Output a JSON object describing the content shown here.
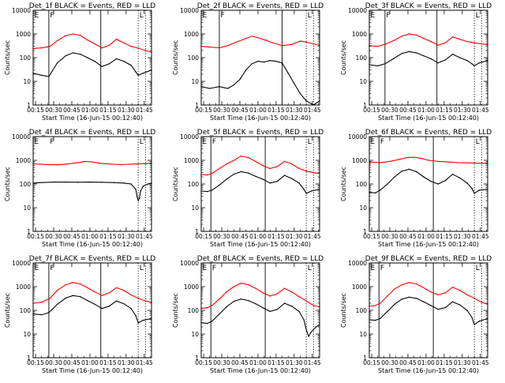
{
  "figure": {
    "xlabel": "Start Time (16-Jun-15 00:12:40)",
    "ylabel": "Counts/sec",
    "x_tick_labels": [
      "00:15",
      "00:30",
      "00:45",
      "01:00",
      "01:15",
      "01:30",
      "01:45"
    ],
    "y_tick_labels": [
      "1",
      "10",
      "100",
      "1000",
      "10000"
    ],
    "marker_labels": {
      "E": "E",
      "F": "F",
      "L": "L"
    }
  },
  "chart_data": [
    {
      "type": "line",
      "title": "Det_1f BLACK = Events, RED = LLD",
      "xlim": [
        13,
        111
      ],
      "ylim": [
        1,
        10000
      ],
      "y_scale": "log",
      "vlines": [
        {
          "x": 26,
          "style": "solid"
        },
        {
          "x": 69,
          "style": "solid"
        },
        {
          "x": 100,
          "style": "dotted"
        },
        {
          "x": 106,
          "style": "dotted"
        }
      ],
      "markers": [
        {
          "label": "E",
          "x": 14
        },
        {
          "label": "F",
          "x": 27
        },
        {
          "label": "L",
          "x": 101
        }
      ],
      "series": [
        {
          "color": "#ff0000",
          "x": [
            13,
            20,
            27,
            33,
            40,
            46,
            52,
            58,
            64,
            70,
            76,
            82,
            88,
            94,
            100,
            106,
            111
          ],
          "y": [
            240,
            260,
            300,
            520,
            850,
            1000,
            870,
            560,
            380,
            260,
            330,
            600,
            420,
            300,
            250,
            200,
            170
          ]
        },
        {
          "color": "#000000",
          "x": [
            13,
            20,
            26,
            33,
            40,
            46,
            52,
            58,
            64,
            70,
            76,
            82,
            88,
            94,
            98,
            100,
            104,
            111
          ],
          "y": [
            22,
            18,
            16,
            60,
            120,
            160,
            140,
            100,
            70,
            42,
            55,
            90,
            70,
            48,
            25,
            18,
            22,
            30
          ]
        }
      ]
    },
    {
      "type": "line",
      "title": "Det_2f BLACK = Events, RED = LLD",
      "xlim": [
        13,
        111
      ],
      "ylim": [
        1,
        10000
      ],
      "y_scale": "log",
      "vlines": [
        {
          "x": 28,
          "style": "solid"
        },
        {
          "x": 80,
          "style": "solid"
        },
        {
          "x": 100,
          "style": "dotted"
        },
        {
          "x": 106,
          "style": "dotted"
        }
      ],
      "markers": [
        {
          "label": "E",
          "x": 14
        },
        {
          "label": "F",
          "x": 29
        },
        {
          "label": "L",
          "x": 101
        }
      ],
      "series": [
        {
          "color": "#ff0000",
          "x": [
            13,
            20,
            28,
            35,
            42,
            50,
            55,
            60,
            66,
            72,
            80,
            88,
            95,
            100,
            106,
            111
          ],
          "y": [
            300,
            280,
            260,
            320,
            450,
            650,
            800,
            700,
            550,
            430,
            320,
            360,
            500,
            450,
            380,
            330
          ]
        },
        {
          "color": "#000000",
          "x": [
            13,
            20,
            28,
            35,
            40,
            45,
            50,
            55,
            60,
            65,
            70,
            75,
            80,
            85,
            90,
            95,
            100,
            106,
            111
          ],
          "y": [
            6,
            5,
            6,
            5,
            7,
            12,
            30,
            55,
            70,
            65,
            75,
            70,
            60,
            22,
            8,
            3,
            1.5,
            1,
            1.5
          ]
        }
      ]
    },
    {
      "type": "line",
      "title": "Det_3f BLACK = Events, RED = LLD",
      "xlim": [
        13,
        111
      ],
      "ylim": [
        1,
        10000
      ],
      "y_scale": "log",
      "vlines": [
        {
          "x": 26,
          "style": "solid"
        },
        {
          "x": 69,
          "style": "solid"
        },
        {
          "x": 100,
          "style": "dotted"
        },
        {
          "x": 106,
          "style": "dotted"
        }
      ],
      "markers": [
        {
          "label": "E",
          "x": 14
        },
        {
          "label": "F",
          "x": 27
        },
        {
          "label": "L",
          "x": 101
        }
      ],
      "series": [
        {
          "color": "#ff0000",
          "x": [
            13,
            20,
            27,
            33,
            40,
            46,
            52,
            58,
            64,
            70,
            76,
            82,
            88,
            94,
            100,
            106,
            111
          ],
          "y": [
            320,
            300,
            380,
            520,
            800,
            1000,
            900,
            650,
            480,
            340,
            420,
            750,
            600,
            480,
            420,
            380,
            350
          ]
        },
        {
          "color": "#000000",
          "x": [
            13,
            20,
            26,
            33,
            40,
            46,
            52,
            58,
            64,
            70,
            76,
            82,
            88,
            94,
            98,
            100,
            104,
            111
          ],
          "y": [
            50,
            45,
            55,
            90,
            150,
            180,
            160,
            120,
            90,
            60,
            80,
            140,
            100,
            75,
            55,
            45,
            60,
            75
          ]
        }
      ]
    },
    {
      "type": "line",
      "title": "Det_4f BLACK = Events, RED = LLD",
      "xlim": [
        13,
        111
      ],
      "ylim": [
        1,
        10000
      ],
      "y_scale": "log",
      "vlines": [
        {
          "x": 100,
          "style": "dotted"
        },
        {
          "x": 106,
          "style": "dotted"
        }
      ],
      "markers": [
        {
          "label": "E",
          "x": 14
        },
        {
          "label": "F",
          "x": 27
        },
        {
          "label": "L",
          "x": 101
        }
      ],
      "series": [
        {
          "color": "#ff0000",
          "x": [
            13,
            20,
            27,
            34,
            42,
            50,
            56,
            62,
            68,
            74,
            80,
            86,
            92,
            98,
            104,
            111
          ],
          "y": [
            700,
            680,
            650,
            650,
            700,
            800,
            900,
            850,
            750,
            700,
            680,
            650,
            680,
            700,
            720,
            740
          ]
        },
        {
          "color": "#000000",
          "x": [
            13,
            20,
            30,
            40,
            50,
            60,
            70,
            80,
            88,
            94,
            98,
            99,
            100,
            101,
            102,
            104,
            106,
            108,
            111
          ],
          "y": [
            110,
            115,
            120,
            120,
            118,
            120,
            118,
            115,
            110,
            100,
            60,
            30,
            20,
            25,
            50,
            80,
            90,
            100,
            110
          ]
        }
      ]
    },
    {
      "type": "line",
      "title": "Det_5f BLACK = Events, RED = LLD",
      "xlim": [
        13,
        111
      ],
      "ylim": [
        1,
        10000
      ],
      "y_scale": "log",
      "vlines": [
        {
          "x": 21,
          "style": "solid"
        },
        {
          "x": 66,
          "style": "solid"
        },
        {
          "x": 100,
          "style": "dotted"
        },
        {
          "x": 106,
          "style": "dotted"
        }
      ],
      "markers": [
        {
          "label": "E",
          "x": 14
        },
        {
          "label": "F",
          "x": 22
        },
        {
          "label": "L",
          "x": 101
        }
      ],
      "series": [
        {
          "color": "#ff0000",
          "x": [
            13,
            18,
            22,
            28,
            34,
            40,
            46,
            52,
            58,
            64,
            70,
            76,
            82,
            88,
            94,
            100,
            106,
            111
          ],
          "y": [
            250,
            240,
            280,
            450,
            700,
            1000,
            1500,
            1300,
            900,
            600,
            450,
            550,
            900,
            700,
            450,
            350,
            300,
            280
          ]
        },
        {
          "color": "#000000",
          "x": [
            13,
            18,
            22,
            28,
            34,
            40,
            46,
            52,
            58,
            64,
            70,
            76,
            82,
            88,
            94,
            98,
            100,
            104,
            111
          ],
          "y": [
            50,
            48,
            55,
            90,
            160,
            260,
            330,
            290,
            210,
            160,
            110,
            130,
            230,
            170,
            110,
            60,
            40,
            50,
            60
          ]
        }
      ]
    },
    {
      "type": "line",
      "title": "Det_6f BLACK = Events, RED = LLD",
      "xlim": [
        13,
        111
      ],
      "ylim": [
        1,
        10000
      ],
      "y_scale": "log",
      "vlines": [
        {
          "x": 21,
          "style": "solid"
        },
        {
          "x": 66,
          "style": "solid"
        },
        {
          "x": 100,
          "style": "dotted"
        },
        {
          "x": 106,
          "style": "dotted"
        }
      ],
      "markers": [
        {
          "label": "E",
          "x": 14
        },
        {
          "label": "F",
          "x": 22
        },
        {
          "label": "L",
          "x": 101
        }
      ],
      "series": [
        {
          "color": "#ff0000",
          "x": [
            13,
            22,
            30,
            38,
            44,
            50,
            56,
            62,
            70,
            78,
            86,
            94,
            100,
            106,
            111
          ],
          "y": [
            850,
            800,
            900,
            1100,
            1300,
            1350,
            1200,
            1000,
            900,
            850,
            800,
            780,
            760,
            750,
            740
          ]
        },
        {
          "color": "#000000",
          "x": [
            13,
            18,
            22,
            28,
            34,
            40,
            46,
            52,
            58,
            64,
            70,
            76,
            82,
            88,
            94,
            98,
            100,
            104,
            111
          ],
          "y": [
            45,
            42,
            55,
            100,
            200,
            350,
            420,
            330,
            200,
            130,
            100,
            140,
            260,
            180,
            110,
            65,
            40,
            55,
            60
          ]
        }
      ]
    },
    {
      "type": "line",
      "title": "Det_7f BLACK = Events, RED = LLD",
      "xlim": [
        13,
        111
      ],
      "ylim": [
        1,
        10000
      ],
      "y_scale": "log",
      "vlines": [
        {
          "x": 26,
          "style": "solid"
        },
        {
          "x": 69,
          "style": "solid"
        },
        {
          "x": 100,
          "style": "dotted"
        },
        {
          "x": 106,
          "style": "dotted"
        }
      ],
      "markers": [
        {
          "label": "E",
          "x": 14
        },
        {
          "label": "F",
          "x": 27
        },
        {
          "label": "L",
          "x": 101
        }
      ],
      "series": [
        {
          "color": "#ff0000",
          "x": [
            13,
            20,
            27,
            33,
            40,
            46,
            52,
            58,
            64,
            70,
            76,
            82,
            88,
            94,
            100,
            106,
            111
          ],
          "y": [
            200,
            220,
            320,
            700,
            1200,
            1500,
            1300,
            900,
            600,
            420,
            550,
            900,
            700,
            450,
            320,
            250,
            220
          ]
        },
        {
          "color": "#000000",
          "x": [
            13,
            20,
            26,
            33,
            40,
            46,
            52,
            58,
            64,
            70,
            76,
            82,
            88,
            94,
            98,
            100,
            104,
            111
          ],
          "y": [
            70,
            65,
            80,
            180,
            330,
            420,
            380,
            260,
            180,
            120,
            150,
            250,
            190,
            120,
            60,
            30,
            38,
            45
          ]
        }
      ]
    },
    {
      "type": "line",
      "title": "Det_8f BLACK = Events, RED = LLD",
      "xlim": [
        13,
        111
      ],
      "ylim": [
        1,
        10000
      ],
      "y_scale": "log",
      "vlines": [
        {
          "x": 21,
          "style": "solid"
        },
        {
          "x": 66,
          "style": "solid"
        },
        {
          "x": 100,
          "style": "dotted"
        },
        {
          "x": 106,
          "style": "dotted"
        }
      ],
      "markers": [
        {
          "label": "E",
          "x": 14
        },
        {
          "label": "F",
          "x": 22
        },
        {
          "label": "L",
          "x": 101
        }
      ],
      "series": [
        {
          "color": "#ff0000",
          "x": [
            13,
            18,
            22,
            28,
            34,
            40,
            46,
            52,
            58,
            64,
            70,
            76,
            82,
            88,
            94,
            100,
            106,
            111
          ],
          "y": [
            120,
            130,
            160,
            300,
            600,
            1000,
            1400,
            1200,
            850,
            550,
            400,
            500,
            850,
            600,
            380,
            250,
            160,
            140
          ]
        },
        {
          "color": "#000000",
          "x": [
            13,
            18,
            22,
            28,
            34,
            40,
            46,
            52,
            58,
            64,
            70,
            76,
            82,
            88,
            94,
            98,
            100,
            102,
            104,
            108,
            111
          ],
          "y": [
            30,
            28,
            35,
            70,
            140,
            240,
            300,
            260,
            190,
            130,
            90,
            110,
            200,
            150,
            90,
            40,
            15,
            8,
            12,
            20,
            25
          ]
        }
      ]
    },
    {
      "type": "line",
      "title": "Det_9f BLACK = Events, RED = LLD",
      "xlim": [
        13,
        111
      ],
      "ylim": [
        1,
        10000
      ],
      "y_scale": "log",
      "vlines": [
        {
          "x": 21,
          "style": "solid"
        },
        {
          "x": 66,
          "style": "solid"
        },
        {
          "x": 100,
          "style": "dotted"
        },
        {
          "x": 106,
          "style": "dotted"
        }
      ],
      "markers": [
        {
          "label": "E",
          "x": 14
        },
        {
          "label": "F",
          "x": 22
        },
        {
          "label": "L",
          "x": 101
        }
      ],
      "series": [
        {
          "color": "#ff0000",
          "x": [
            13,
            18,
            22,
            28,
            34,
            40,
            46,
            52,
            58,
            64,
            70,
            76,
            82,
            88,
            94,
            100,
            106,
            111
          ],
          "y": [
            150,
            160,
            200,
            400,
            800,
            1200,
            1500,
            1300,
            900,
            600,
            450,
            550,
            950,
            700,
            450,
            320,
            220,
            180
          ]
        },
        {
          "color": "#000000",
          "x": [
            13,
            18,
            22,
            28,
            34,
            40,
            46,
            52,
            58,
            64,
            70,
            76,
            82,
            88,
            94,
            98,
            100,
            104,
            111
          ],
          "y": [
            40,
            38,
            45,
            90,
            180,
            300,
            360,
            320,
            230,
            160,
            110,
            130,
            230,
            170,
            100,
            50,
            25,
            35,
            45
          ]
        }
      ]
    }
  ]
}
